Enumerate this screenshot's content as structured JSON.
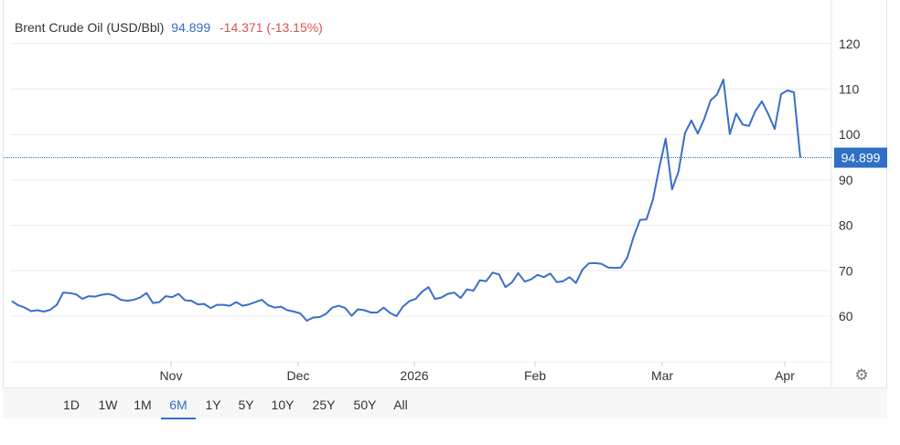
{
  "header": {
    "name": "Brent Crude Oil (USD/Bbl)",
    "price": "94.899",
    "change": "-14.371 (-13.15%)"
  },
  "current_label": "94.899",
  "ranges": [
    "1D",
    "1W",
    "1M",
    "6M",
    "1Y",
    "5Y",
    "10Y",
    "25Y",
    "50Y",
    "All"
  ],
  "active_range": "6M",
  "icons": {
    "settings": "gear-icon"
  },
  "colors": {
    "line": "#3a6fc7",
    "badge": "#2f6fc4",
    "negative": "#d9534f",
    "grid": "#ececec"
  },
  "chart_data": {
    "type": "line",
    "title": "",
    "xlabel": "",
    "ylabel": "",
    "ylim": [
      50,
      130
    ],
    "y_ticks": [
      60,
      70,
      80,
      90,
      100,
      110,
      120
    ],
    "x_ticks": [
      "Nov",
      "Dec",
      "2026",
      "Feb",
      "Mar",
      "Apr"
    ],
    "grid": true,
    "series": [
      {
        "values": [
          63.3,
          62.4,
          61.9,
          61.1,
          61.3,
          61.0,
          61.4,
          62.5,
          65.2,
          65.1,
          64.8,
          63.8,
          64.4,
          64.3,
          64.7,
          64.9,
          64.5,
          63.6,
          63.4,
          63.6,
          64.1,
          65.1,
          62.9,
          63.1,
          64.4,
          64.2,
          64.9,
          63.5,
          63.4,
          62.6,
          62.7,
          61.8,
          62.5,
          62.5,
          62.3,
          63.1,
          62.3,
          62.6,
          63.1,
          63.6,
          62.4,
          61.9,
          62.1,
          61.3,
          61.0,
          60.6,
          59.0,
          59.7,
          59.8,
          60.5,
          61.9,
          62.3,
          61.8,
          60.1,
          61.5,
          61.3,
          60.8,
          60.8,
          61.9,
          60.7,
          60.0,
          62.1,
          63.3,
          63.8,
          65.4,
          66.4,
          63.8,
          64.1,
          64.9,
          65.2,
          64.0,
          65.9,
          65.6,
          67.9,
          67.7,
          69.6,
          69.2,
          66.4,
          67.4,
          69.5,
          67.6,
          68.1,
          69.1,
          68.6,
          69.4,
          67.5,
          67.7,
          68.6,
          67.3,
          70.2,
          71.6,
          71.7,
          71.5,
          70.7,
          70.6,
          70.7,
          72.9,
          77.5,
          81.2,
          81.3,
          85.6,
          92.7,
          99.1,
          87.9,
          91.8,
          100.3,
          103.1,
          100.2,
          103.4,
          107.5,
          108.8,
          112.1,
          100.1,
          104.6,
          102.2,
          101.9,
          105.2,
          107.3,
          104.5,
          101.2,
          108.9,
          109.7,
          109.3,
          94.9
        ]
      }
    ]
  }
}
